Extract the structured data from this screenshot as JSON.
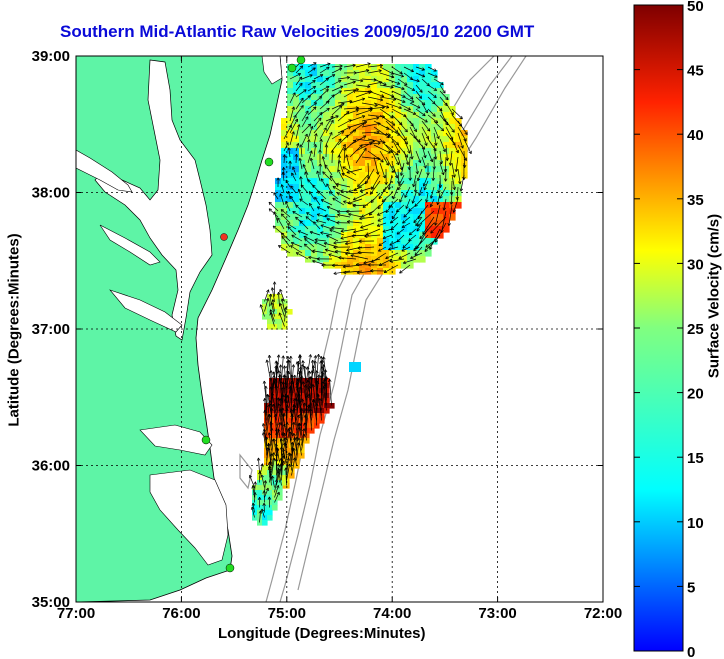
{
  "title": "Southern Mid-Atlantic Raw Velocities 2009/05/10 2200 GMT",
  "x_axis_label": "Longitude (Degrees:Minutes)",
  "y_axis_label": "Latitude (Degrees:Minutes)",
  "x_ticks": [
    "77:00",
    "76:00",
    "75:00",
    "74:00",
    "73:00",
    "72:00"
  ],
  "y_ticks": [
    "39:00",
    "38:00",
    "37:00",
    "36:00",
    "35:00"
  ],
  "colorbar": {
    "label": "Surface Velocity (cm/s)",
    "ticks": [
      "50",
      "45",
      "40",
      "35",
      "30",
      "25",
      "20",
      "15",
      "10",
      "5",
      "0"
    ],
    "min": 0,
    "max": 50,
    "colors": [
      "#0000ff",
      "#00ffff",
      "#ffff00",
      "#ff0000",
      "#7f0000"
    ]
  },
  "colors": {
    "land": "#5ef4a6",
    "water": "#ffffff",
    "bathymetry": "#999999",
    "grid": "#000000",
    "title": "#0a0ad8",
    "station_marker": "#22dd22",
    "station_marker_alt": "#ee3322"
  },
  "map_extent": {
    "lon_west": "77:00",
    "lon_east": "72:00",
    "lat_south": "35:00",
    "lat_north": "39:00"
  }
}
